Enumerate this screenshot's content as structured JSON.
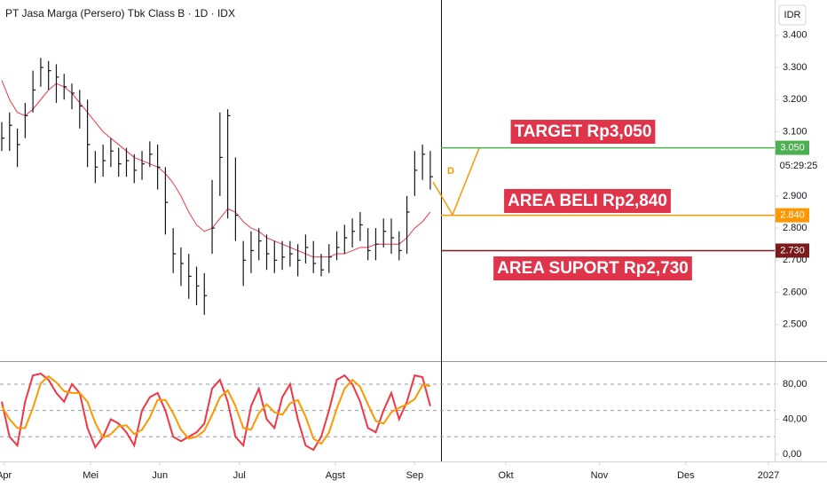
{
  "chart_data": [
    {
      "type": "ohlc",
      "title": "PT Jasa Marga (Persero) Tbk Class B · 1D · IDX",
      "currency": "IDR",
      "countdown": "05:29:25",
      "pattern_label": "D",
      "bar_color": "#131722",
      "xlim": [
        0,
        99.2
      ],
      "xticks": [
        {
          "value": 0.3,
          "label": "Apr"
        },
        {
          "value": 11.4,
          "label": "Mei"
        },
        {
          "value": 20.3,
          "label": "Jun"
        },
        {
          "value": 30.5,
          "label": "Jul"
        },
        {
          "value": 42.8,
          "label": "Agst"
        },
        {
          "value": 53,
          "label": "Sep"
        },
        {
          "value": 64.7,
          "label": "Okt"
        },
        {
          "value": 76.7,
          "label": "Nov"
        },
        {
          "value": 87.8,
          "label": "Des"
        },
        {
          "value": 98.4,
          "label": "2027"
        }
      ],
      "ylim": [
        2386,
        3510
      ],
      "yticks": [
        {
          "value": 3400,
          "label": "3.400"
        },
        {
          "value": 3300,
          "label": "3.300"
        },
        {
          "value": 3200,
          "label": "3.200"
        },
        {
          "value": 3100,
          "label": "3.100"
        },
        {
          "value": 2900,
          "label": "2.900"
        },
        {
          "value": 2800,
          "label": "2.800"
        },
        {
          "value": 2700,
          "label": "2.700"
        },
        {
          "value": 2600,
          "label": "2.600"
        },
        {
          "value": 2500,
          "label": "2.500"
        }
      ],
      "high": [
        3130,
        3160,
        3110,
        3190,
        3290,
        3330,
        3320,
        3310,
        3280,
        3250,
        3230,
        3200,
        3040,
        3060,
        3080,
        3050,
        3050,
        3030,
        3040,
        3070,
        3060,
        2990,
        2800,
        2740,
        2720,
        2680,
        2660,
        2950,
        3160,
        3170,
        3020,
        2760,
        2790,
        2800,
        2780,
        2760,
        2760,
        2760,
        2750,
        2780,
        2760,
        2720,
        2750,
        2790,
        2810,
        2830,
        2850,
        2800,
        2800,
        2830,
        2830,
        2790,
        2900,
        3040,
        3060,
        3040
      ],
      "low": [
        3040,
        3040,
        2990,
        3080,
        3160,
        3240,
        3230,
        3190,
        3200,
        3170,
        3110,
        2990,
        2940,
        2960,
        2990,
        2960,
        2960,
        2940,
        2950,
        2990,
        2920,
        2780,
        2660,
        2620,
        2580,
        2560,
        2530,
        2720,
        2900,
        2830,
        2760,
        2620,
        2660,
        2700,
        2670,
        2660,
        2670,
        2680,
        2650,
        2690,
        2660,
        2650,
        2660,
        2700,
        2720,
        2740,
        2760,
        2700,
        2700,
        2740,
        2720,
        2700,
        2720,
        2900,
        2950,
        2920
      ],
      "close": [
        3080,
        3120,
        3060,
        3150,
        3230,
        3300,
        3290,
        3270,
        3240,
        3220,
        3180,
        3060,
        2990,
        3010,
        3040,
        3000,
        3010,
        2980,
        3000,
        3030,
        2990,
        2880,
        2720,
        2690,
        2650,
        2620,
        2590,
        2800,
        3020,
        3150,
        2840,
        2700,
        2730,
        2760,
        2720,
        2700,
        2710,
        2720,
        2700,
        2740,
        2690,
        2670,
        2710,
        2740,
        2770,
        2790,
        2810,
        2730,
        2750,
        2790,
        2770,
        2730,
        2850,
        2980,
        3030,
        2960
      ],
      "ma": {
        "color": "#f23645",
        "values": [
          3260,
          3200,
          3160,
          3150,
          3170,
          3200,
          3230,
          3250,
          3240,
          3220,
          3190,
          3160,
          3130,
          3100,
          3080,
          3060,
          3040,
          3020,
          3010,
          3000,
          2990,
          2970,
          2940,
          2900,
          2850,
          2810,
          2790,
          2800,
          2830,
          2860,
          2850,
          2820,
          2800,
          2790,
          2770,
          2760,
          2750,
          2740,
          2730,
          2720,
          2710,
          2710,
          2710,
          2720,
          2720,
          2730,
          2740,
          2740,
          2750,
          2750,
          2750,
          2750,
          2770,
          2800,
          2820,
          2850
        ]
      },
      "levels": [
        {
          "value": 3050,
          "label": "3.050",
          "color": "#4caf50",
          "annotation": "TARGET Rp3,050"
        },
        {
          "value": 2840,
          "label": "2.840",
          "color": "#ff9800",
          "annotation": "AREA BELI Rp2,840"
        },
        {
          "value": 2730,
          "label": "2.730",
          "color": "#7b1c1c",
          "annotation": "AREA SUPORT Rp2,730"
        }
      ]
    },
    {
      "type": "line",
      "xlim": [
        0,
        99.2
      ],
      "ylim": [
        -8.1,
        105.3
      ],
      "yticks": [
        {
          "value": 80,
          "label": "80,00"
        },
        {
          "value": 40,
          "label": "40,00"
        },
        {
          "value": 0,
          "label": "0,00"
        }
      ],
      "levels": [
        80,
        50,
        20
      ],
      "series": [
        {
          "color": "#f23645",
          "values": [
            60,
            20,
            10,
            60,
            90,
            92,
            85,
            70,
            60,
            80,
            70,
            30,
            8,
            20,
            40,
            35,
            25,
            10,
            50,
            65,
            70,
            50,
            20,
            15,
            20,
            25,
            35,
            75,
            85,
            60,
            20,
            10,
            55,
            75,
            40,
            30,
            65,
            80,
            40,
            10,
            5,
            20,
            50,
            85,
            90,
            80,
            60,
            30,
            25,
            50,
            70,
            40,
            60,
            90,
            88,
            55
          ]
        },
        {
          "color": "#ff9800",
          "values": [
            55,
            40,
            30,
            30,
            53,
            81,
            89,
            82,
            72,
            70,
            70,
            60,
            36,
            19,
            23,
            32,
            33,
            23,
            28,
            42,
            62,
            62,
            47,
            28,
            18,
            20,
            27,
            45,
            65,
            73,
            55,
            30,
            28,
            47,
            57,
            48,
            45,
            58,
            62,
            43,
            18,
            12,
            25,
            52,
            75,
            85,
            77,
            57,
            38,
            35,
            48,
            53,
            57,
            63,
            79,
            78
          ]
        }
      ]
    }
  ]
}
